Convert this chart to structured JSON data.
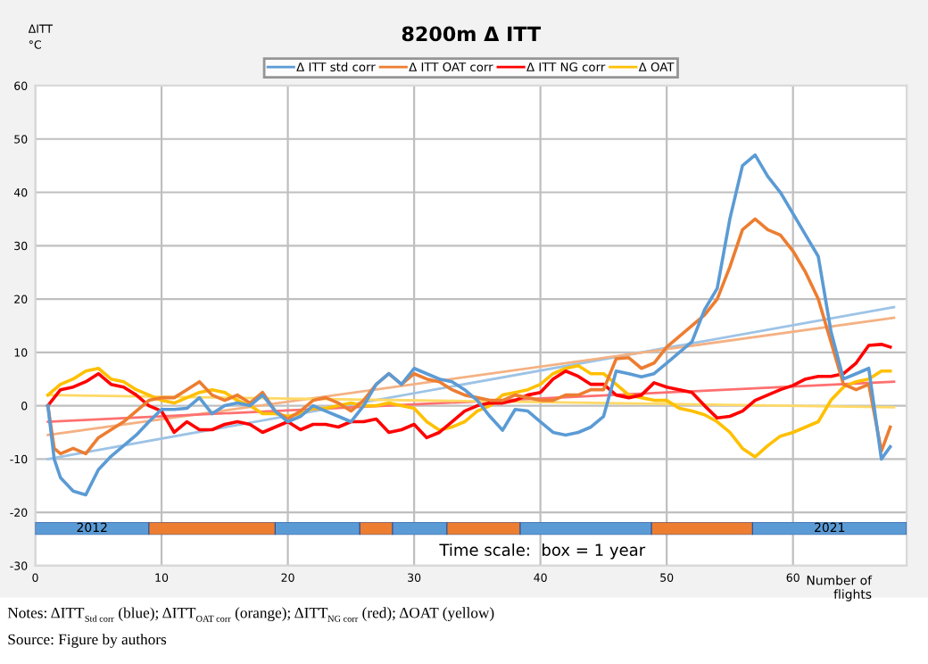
{
  "chart_data": [
    {
      "type": "line",
      "title": "8200m Δ ITT",
      "xlabel": "Number of\nflights",
      "ylabel": "ΔITT\n°C",
      "xlim": [
        0,
        69
      ],
      "xticks": [
        0,
        10,
        20,
        30,
        40,
        50,
        60
      ],
      "ylim": [
        -30,
        60
      ],
      "yticks": [
        -30,
        -20,
        -10,
        0,
        10,
        20,
        30,
        40,
        50,
        60
      ],
      "grid": true,
      "legend": "top",
      "line_style": "solid",
      "marker": "none",
      "series": [
        {
          "name": "Δ ITT std corr",
          "color": "#5b9bd5",
          "x": [
            1,
            1.5,
            2,
            3,
            4,
            5,
            6,
            7,
            8,
            9,
            10,
            11,
            12,
            13,
            14,
            15,
            16,
            17,
            18,
            19,
            20,
            21,
            22,
            23,
            24,
            25,
            26,
            27,
            28,
            29,
            30,
            31,
            32,
            33,
            34,
            35,
            36,
            37,
            38,
            39,
            40,
            41,
            42,
            43,
            44,
            45,
            46,
            47,
            48,
            49,
            50,
            51,
            52,
            53,
            54,
            55,
            56,
            57,
            58,
            59,
            60,
            61,
            62,
            63,
            64,
            65,
            66,
            67,
            67.7
          ],
          "values": [
            0,
            -10,
            -13.5,
            -16,
            -16.7,
            -12,
            -9.5,
            -7.5,
            -5.5,
            -3,
            -0.7,
            -0.7,
            -0.5,
            1.5,
            -1.5,
            0,
            0.5,
            0,
            2,
            -1,
            -3,
            -2,
            0,
            -1,
            -2,
            -3,
            0,
            4,
            6,
            4,
            7,
            6,
            5,
            4.5,
            3,
            1,
            -2,
            -4.6,
            -0.7,
            -1,
            -3,
            -5,
            -5.5,
            -5,
            -4,
            -2,
            6.5,
            6,
            5.4,
            6,
            8,
            10,
            12,
            18,
            22,
            35,
            45,
            47,
            43,
            40,
            36,
            32,
            28,
            14,
            5,
            6,
            7,
            -10,
            -7.7
          ]
        },
        {
          "name": "Δ ITT OAT corr",
          "color": "#ed7d31",
          "x": [
            1,
            1.5,
            2,
            3,
            4,
            5,
            6,
            7,
            8,
            9,
            10,
            11,
            12,
            13,
            14,
            15,
            16,
            17,
            18,
            19,
            20,
            21,
            22,
            23,
            24,
            25,
            26,
            27,
            28,
            29,
            30,
            31,
            32,
            33,
            34,
            35,
            36,
            37,
            38,
            39,
            40,
            41,
            42,
            43,
            44,
            45,
            46,
            47,
            48,
            49,
            50,
            51,
            52,
            53,
            54,
            55,
            56,
            57,
            58,
            59,
            60,
            61,
            62,
            63,
            64,
            65,
            66,
            67,
            67.7
          ],
          "values": [
            0,
            -8,
            -9,
            -8,
            -9,
            -6,
            -4.5,
            -3,
            -1,
            1,
            1.5,
            1.5,
            3,
            4.5,
            2,
            1,
            2,
            0.5,
            2.5,
            -1,
            -2.5,
            -1,
            1,
            1.5,
            0.5,
            -1,
            1,
            4,
            6,
            4,
            6,
            5,
            4.5,
            3,
            2,
            1.5,
            1,
            1,
            2,
            1.5,
            1,
            1,
            2,
            2,
            3,
            3,
            8.8,
            9,
            7,
            8,
            11,
            13,
            15,
            17,
            20,
            26,
            33,
            35,
            33,
            32,
            29,
            25,
            20,
            12,
            4,
            3,
            4,
            -8.5,
            -4
          ]
        },
        {
          "name": "Δ ITT NG corr",
          "color": "#ff0000",
          "x": [
            1,
            2,
            3,
            4,
            5,
            6,
            7,
            8,
            9,
            10,
            11,
            12,
            13,
            14,
            15,
            16,
            17,
            18,
            19,
            20,
            21,
            22,
            23,
            24,
            25,
            26,
            27,
            28,
            29,
            30,
            31,
            32,
            33,
            34,
            35,
            36,
            37,
            38,
            39,
            40,
            41,
            42,
            43,
            44,
            45,
            46,
            47,
            48,
            49,
            50,
            51,
            52,
            53,
            54,
            55,
            56,
            57,
            58,
            59,
            60,
            61,
            62,
            63,
            64,
            65,
            66,
            67,
            67.7
          ],
          "values": [
            0,
            3,
            3.5,
            4.5,
            6,
            4,
            3.5,
            2,
            0,
            -1,
            -5,
            -3,
            -4.5,
            -4.5,
            -3.5,
            -3,
            -3.5,
            -5,
            -4,
            -3,
            -4.5,
            -3.5,
            -3.5,
            -4,
            -3,
            -3,
            -2.5,
            -5,
            -4.5,
            -3.5,
            -6,
            -5,
            -3,
            -1,
            0,
            0.5,
            0.5,
            1,
            2,
            2.5,
            5,
            6.5,
            5.5,
            4,
            4,
            2,
            1.5,
            2,
            4.3,
            3.5,
            3,
            2.5,
            0,
            -2.3,
            -2,
            -1,
            1,
            2,
            3,
            3.8,
            5,
            5.5,
            5.5,
            6,
            8,
            11.3,
            11.5,
            11
          ]
        },
        {
          "name": "Δ OAT",
          "color": "#ffc000",
          "x": [
            1,
            2,
            3,
            4,
            5,
            6,
            7,
            8,
            9,
            10,
            11,
            12,
            13,
            14,
            15,
            16,
            17,
            18,
            19,
            20,
            21,
            22,
            23,
            24,
            25,
            26,
            27,
            28,
            29,
            30,
            31,
            32,
            33,
            34,
            35,
            36,
            37,
            38,
            39,
            40,
            41,
            42,
            43,
            44,
            45,
            46,
            47,
            48,
            49,
            50,
            51,
            52,
            53,
            54,
            55,
            56,
            57,
            58,
            59,
            60,
            61,
            62,
            63,
            64,
            65,
            66,
            67,
            67.7
          ],
          "values": [
            2,
            4,
            5,
            6.5,
            7,
            5,
            4.5,
            3,
            2,
            1,
            0.5,
            1.5,
            2.5,
            3,
            2.5,
            1,
            0,
            -1.5,
            -1.5,
            -2,
            -1.5,
            -0.5,
            -0.5,
            0,
            0.5,
            0,
            0,
            0.5,
            0,
            -0.5,
            -3,
            -4.6,
            -4,
            -3,
            -1,
            0,
            2,
            2.5,
            3,
            4,
            6,
            7,
            7.5,
            6,
            6,
            4,
            2,
            1.5,
            1,
            1,
            -0.5,
            -1,
            -1.7,
            -3,
            -5,
            -8,
            -9.6,
            -7.5,
            -5.7,
            -5,
            -4,
            -3,
            1,
            3.5,
            4.5,
            5,
            6.5,
            6.5
          ]
        },
        {
          "type": "line",
          "color": "#9dc3e6",
          "x": [
            1,
            68
          ],
          "values": [
            -10,
            18.5
          ]
        },
        {
          "type": "line",
          "color": "#f4b183",
          "x": [
            1,
            68
          ],
          "values": [
            -5.5,
            16.5
          ]
        },
        {
          "type": "line",
          "color": "#ff7070",
          "x": [
            1,
            68
          ],
          "values": [
            -3,
            4.5
          ]
        },
        {
          "type": "line",
          "color": "#ffd966",
          "x": [
            1,
            68
          ],
          "values": [
            2,
            -0.3
          ]
        }
      ],
      "annotations": [
        "Time scale:  box = 1 year",
        "Notes: ΔITT$_{Std corr}$ (blue); ΔITT$_{OAT corr}$ (orange); ΔITT$_{NG corr}$ (red); ΔOAT (yellow)",
        "Source: Figure by authors"
      ]
    },
    {
      "type": "bar",
      "orientation": "horizontal",
      "stacked": true,
      "categories": [
        null
      ],
      "xlim": [
        0,
        69
      ],
      "annotations": [
        "2012",
        "2021"
      ],
      "series": [
        {
          "color": "#5b9bd5",
          "values": [
            9
          ]
        },
        {
          "color": "#ed7d31",
          "values": [
            10
          ]
        },
        {
          "color": "#5b9bd5",
          "values": [
            6.7
          ]
        },
        {
          "color": "#ed7d31",
          "values": [
            2.6
          ]
        },
        {
          "color": "#5b9bd5",
          "values": [
            4.3
          ]
        },
        {
          "color": "#ed7d31",
          "values": [
            5.8
          ]
        },
        {
          "color": "#5b9bd5",
          "values": [
            10.4
          ]
        },
        {
          "color": "#ed7d31",
          "values": [
            8
          ]
        },
        {
          "color": "#5b9bd5",
          "values": [
            12.2
          ]
        }
      ]
    }
  ]
}
